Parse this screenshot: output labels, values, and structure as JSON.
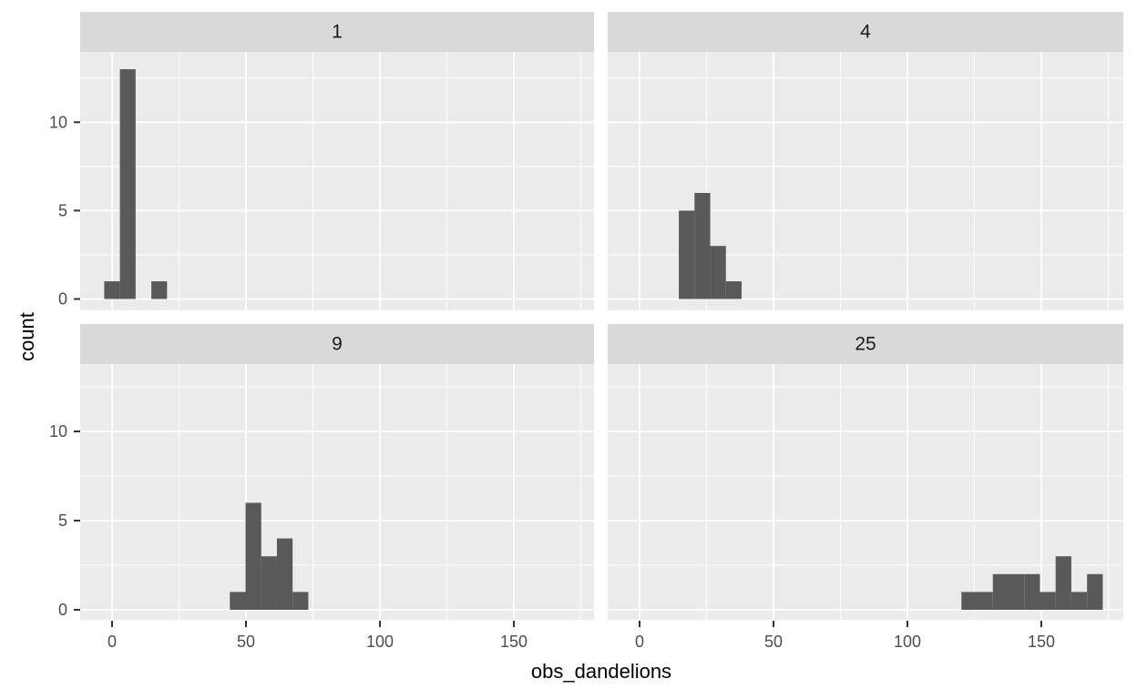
{
  "chart_data": {
    "type": "histogram",
    "facet_layout": "2x2 grid (facet_wrap)",
    "xlabel": "obs_dandelions",
    "ylabel": "count",
    "x_ticks": [
      0,
      50,
      100,
      150
    ],
    "y_ticks": [
      0,
      5,
      10
    ],
    "x_minor_gridlines": [
      25,
      75,
      125,
      175
    ],
    "y_minor_gridlines": [
      2.5,
      7.5,
      12.5
    ],
    "xlim": [
      -11.9,
      180.6
    ],
    "ylim": [
      -0.66,
      13.95
    ],
    "binwidth": 5.86,
    "grid": true,
    "legend": "none",
    "facets": [
      {
        "label": "1",
        "bins": [
          {
            "x0": -2.93,
            "count": 1
          },
          {
            "x0": 2.93,
            "count": 13
          },
          {
            "x0": 14.66,
            "count": 1
          }
        ]
      },
      {
        "label": "4",
        "bins": [
          {
            "x0": 14.66,
            "count": 5
          },
          {
            "x0": 20.52,
            "count": 6
          },
          {
            "x0": 26.38,
            "count": 3
          },
          {
            "x0": 32.24,
            "count": 1
          }
        ]
      },
      {
        "label": "9",
        "bins": [
          {
            "x0": 43.97,
            "count": 1
          },
          {
            "x0": 49.83,
            "count": 6
          },
          {
            "x0": 55.69,
            "count": 3
          },
          {
            "x0": 61.55,
            "count": 4
          },
          {
            "x0": 67.41,
            "count": 1
          }
        ]
      },
      {
        "label": "25",
        "bins": [
          {
            "x0": 120.17,
            "count": 1
          },
          {
            "x0": 126.03,
            "count": 1
          },
          {
            "x0": 131.9,
            "count": 2
          },
          {
            "x0": 137.76,
            "count": 2
          },
          {
            "x0": 143.62,
            "count": 2
          },
          {
            "x0": 149.48,
            "count": 1
          },
          {
            "x0": 155.34,
            "count": 3
          },
          {
            "x0": 161.21,
            "count": 1
          },
          {
            "x0": 167.07,
            "count": 2
          }
        ]
      }
    ],
    "colors": {
      "bar": "#595959",
      "panel_bg": "#EBEBEB",
      "strip_bg": "#D9D9D9",
      "gridline": "#FFFFFF",
      "tick_mark": "#333333",
      "tick_label": "#4D4D4D",
      "strip_text": "#1A1A1A",
      "axis_title": "#000000",
      "background": "#FFFFFF"
    }
  }
}
